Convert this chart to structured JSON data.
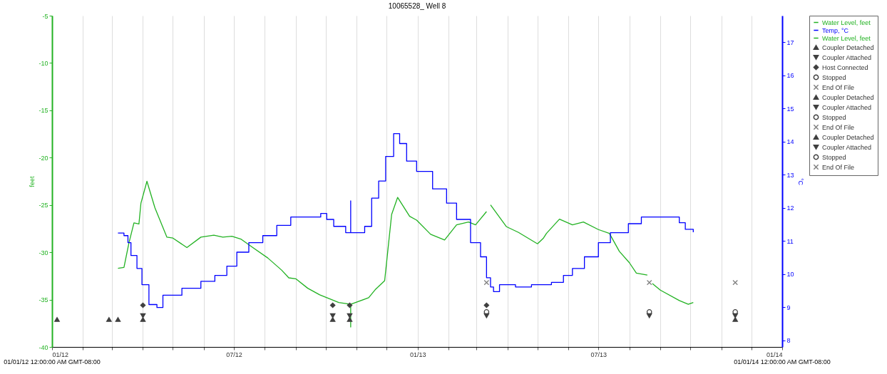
{
  "chart_data": {
    "type": "line",
    "title": "10065528_ Well 8",
    "ylabel": "feet",
    "y2label": "°C",
    "xlim": [
      "2012-01-01",
      "2014-01-01"
    ],
    "xticks": [
      {
        "value": "2012-01-01",
        "label": "01/12"
      },
      {
        "value": "2012-02-01",
        "label": null
      },
      {
        "value": "2012-03-01",
        "label": null
      },
      {
        "value": "2012-04-01",
        "label": null
      },
      {
        "value": "2012-05-01",
        "label": null
      },
      {
        "value": "2012-06-01",
        "label": null
      },
      {
        "value": "2012-07-01",
        "label": "07/12"
      },
      {
        "value": "2012-08-01",
        "label": null
      },
      {
        "value": "2012-09-01",
        "label": null
      },
      {
        "value": "2012-10-01",
        "label": null
      },
      {
        "value": "2012-11-01",
        "label": null
      },
      {
        "value": "2012-12-01",
        "label": null
      },
      {
        "value": "2013-01-01",
        "label": "01/13"
      },
      {
        "value": "2013-02-01",
        "label": null
      },
      {
        "value": "2013-03-01",
        "label": null
      },
      {
        "value": "2013-04-01",
        "label": null
      },
      {
        "value": "2013-05-01",
        "label": null
      },
      {
        "value": "2013-06-01",
        "label": null
      },
      {
        "value": "2013-07-01",
        "label": "07/13"
      },
      {
        "value": "2013-08-01",
        "label": null
      },
      {
        "value": "2013-09-01",
        "label": null
      },
      {
        "value": "2013-10-01",
        "label": null
      },
      {
        "value": "2013-11-01",
        "label": null
      },
      {
        "value": "2013-12-01",
        "label": null
      },
      {
        "value": "2014-01-01",
        "label": "01/14"
      }
    ],
    "ylim": [
      -40,
      -5
    ],
    "yticks": [
      -40,
      -35,
      -30,
      -25,
      -20,
      -15,
      -10,
      -5
    ],
    "y2lim": [
      7.8,
      17.8
    ],
    "y2ticks": [
      8,
      9,
      10,
      11,
      12,
      13,
      14,
      15,
      16,
      17
    ],
    "grid": "x",
    "legend": "top right",
    "annotations": [
      "01/01/12 12:00:00 AM GMT-08:00",
      "01/01/14 12:00:00 AM GMT-08:00"
    ],
    "series": [
      {
        "name": "Water Level, feet",
        "type": "line",
        "color": "#22b222",
        "x": [
          "2012-03-07",
          "2012-03-13",
          "2012-03-18",
          "2012-03-23",
          "2012-03-28",
          "2012-03-30",
          "2012-04-05",
          "2012-04-13",
          "2012-04-25",
          "2012-05-01",
          "2012-05-15",
          "2012-05-29",
          "2012-06-11",
          "2012-06-20",
          "2012-06-29",
          "2012-07-08",
          "2012-07-20",
          "2012-08-04",
          "2012-08-18",
          "2012-08-25",
          "2012-09-01",
          "2012-09-13",
          "2012-09-25",
          "2012-10-07",
          "2012-10-14",
          "2012-10-26",
          "2012-10-26",
          "2012-10-26",
          "2012-11-13",
          "2012-11-20",
          "2012-11-29",
          "2012-12-02",
          "2012-12-06",
          "2012-12-12",
          "2012-12-24",
          "2012-12-31",
          "2013-01-14",
          "2013-01-28",
          "2013-02-09",
          "2013-02-21",
          "2013-02-28",
          "2013-03-11"
        ],
        "values": [
          -31.7,
          -31.6,
          -29.0,
          -26.9,
          -27.0,
          -24.8,
          -22.5,
          -25.3,
          -28.4,
          -28.5,
          -29.5,
          -28.4,
          -28.2,
          -28.4,
          -28.3,
          -28.6,
          -29.5,
          -30.6,
          -31.9,
          -32.7,
          -32.8,
          -33.8,
          -34.5,
          -35.0,
          -35.3,
          -35.5,
          -37.9,
          -35.5,
          -34.8,
          -33.9,
          -33.0,
          -30.0,
          -26.0,
          -24.2,
          -26.2,
          -26.6,
          -28.1,
          -28.7,
          -27.1,
          -26.8,
          -27.1,
          -25.7
        ]
      },
      {
        "name": "Temp, °C",
        "type": "step",
        "axis": "y2",
        "color": "#0000ff",
        "x": [
          "2012-03-07",
          "2012-03-13",
          "2012-03-17",
          "2012-03-20",
          "2012-03-26",
          "2012-03-31",
          "2012-04-07",
          "2012-04-15",
          "2012-04-21",
          "2012-05-10",
          "2012-05-29",
          "2012-06-12",
          "2012-06-24",
          "2012-07-04",
          "2012-07-16",
          "2012-07-30",
          "2012-08-13",
          "2012-08-27",
          "2012-09-17",
          "2012-09-26",
          "2012-10-02",
          "2012-10-09",
          "2012-10-21",
          "2012-10-26",
          "2012-10-26",
          "2012-11-03",
          "2012-11-09",
          "2012-11-16",
          "2012-11-23",
          "2012-11-30",
          "2012-12-08",
          "2012-12-14",
          "2012-12-21",
          "2012-12-31",
          "2013-01-16",
          "2013-01-30",
          "2013-02-09",
          "2013-02-23",
          "2013-03-05",
          "2013-03-11",
          "2013-03-15",
          "2013-03-18",
          "2013-03-24",
          "2013-04-09",
          "2013-04-25",
          "2013-05-15",
          "2013-05-27",
          "2013-06-05",
          "2013-06-17",
          "2013-07-01",
          "2013-07-13",
          "2013-07-31",
          "2013-08-13",
          "2013-09-14",
          "2013-09-20",
          "2013-09-26",
          "2013-10-04"
        ],
        "values": [
          11.24,
          11.16,
          10.95,
          10.56,
          10.17,
          9.68,
          9.08,
          8.99,
          9.36,
          9.57,
          9.78,
          9.96,
          10.24,
          10.66,
          10.95,
          11.16,
          11.47,
          11.72,
          11.72,
          11.83,
          11.65,
          11.44,
          11.25,
          12.21,
          11.25,
          11.25,
          11.44,
          12.29,
          12.81,
          13.55,
          14.24,
          13.94,
          13.41,
          13.1,
          12.57,
          12.14,
          11.65,
          10.95,
          10.52,
          9.89,
          9.61,
          9.47,
          9.68,
          9.61,
          9.68,
          9.75,
          9.96,
          10.17,
          10.52,
          10.95,
          11.25,
          11.52,
          11.72,
          11.72,
          11.55,
          11.35,
          11.26
        ]
      },
      {
        "name": "Water Level, feet",
        "type": "line",
        "color": "#22b222",
        "x": [
          "2013-03-15",
          "2013-03-31",
          "2013-04-12",
          "2013-05-01",
          "2013-05-07",
          "2013-05-10",
          "2013-05-23",
          "2013-06-05",
          "2013-06-16",
          "2013-07-01",
          "2013-07-12",
          "2013-07-22",
          "2013-08-01",
          "2013-08-08",
          "2013-08-19",
          "2013-08-20",
          "2013-08-24",
          "2013-09-01",
          "2013-09-20",
          "2013-09-29",
          "2013-10-04"
        ],
        "values": [
          -25.0,
          -27.3,
          -27.9,
          -29.1,
          -28.5,
          -28.0,
          -26.5,
          -27.1,
          -26.8,
          -27.6,
          -28.0,
          -29.9,
          -31.1,
          -32.2,
          -32.4,
          null,
          -33.3,
          -34.0,
          -35.1,
          -35.5,
          -35.3
        ]
      },
      {
        "name": "Coupler Detached",
        "type": "scatter",
        "marker": "triangle-up",
        "color": "#404040",
        "x": [
          "2012-01-06",
          "2012-02-27",
          "2012-03-07"
        ],
        "values": [
          -37.1,
          -37.1,
          -37.1
        ]
      },
      {
        "name": "Coupler Attached",
        "type": "scatter",
        "marker": "triangle-down",
        "color": "#404040",
        "x": [
          "2012-04-01"
        ],
        "values": [
          -36.7
        ]
      },
      {
        "name": "Host Connected",
        "type": "scatter",
        "marker": "diamond",
        "color": "#404040",
        "x": [
          "2012-04-01",
          "2012-10-08",
          "2012-10-25",
          "2013-03-11"
        ],
        "values": [
          -35.6,
          -35.6,
          -35.6,
          -35.6
        ]
      },
      {
        "name": "Stopped",
        "type": "scatter",
        "marker": "circle",
        "color": "#404040",
        "x": [
          "2013-03-11"
        ],
        "values": [
          -36.3
        ]
      },
      {
        "name": "End Of File",
        "type": "scatter",
        "marker": "cross",
        "color": "#808080",
        "x": [
          "2013-03-11"
        ],
        "values": [
          -33.2
        ]
      },
      {
        "name": "Coupler Detached",
        "type": "scatter",
        "marker": "triangle-up",
        "color": "#404040",
        "x": [
          "2012-04-01",
          "2012-10-08",
          "2012-10-25"
        ],
        "values": [
          -37.1,
          -37.1,
          -37.1
        ]
      },
      {
        "name": "Coupler Attached",
        "type": "scatter",
        "marker": "triangle-down",
        "color": "#404040",
        "x": [
          "2012-10-08",
          "2012-10-25",
          "2013-03-11"
        ],
        "values": [
          -36.7,
          -36.7,
          -36.7
        ]
      },
      {
        "name": "Stopped",
        "type": "scatter",
        "marker": "circle",
        "color": "#404040",
        "x": [
          "2013-08-21"
        ],
        "values": [
          -36.3
        ]
      },
      {
        "name": "End Of File",
        "type": "scatter",
        "marker": "cross",
        "color": "#808080",
        "x": [
          "2013-08-21"
        ],
        "values": [
          -33.2
        ]
      },
      {
        "name": "Coupler Detached",
        "type": "scatter",
        "marker": "triangle-up",
        "color": "#404040",
        "x": [
          "2013-11-15"
        ],
        "values": [
          -37.1
        ]
      },
      {
        "name": "Coupler Attached",
        "type": "scatter",
        "marker": "triangle-down",
        "color": "#404040",
        "x": [
          "2013-08-21",
          "2013-11-15"
        ],
        "values": [
          -36.7,
          -36.7
        ]
      },
      {
        "name": "Stopped",
        "type": "scatter",
        "marker": "circle",
        "color": "#404040",
        "x": [
          "2013-11-15"
        ],
        "values": [
          -36.3
        ]
      },
      {
        "name": "End Of File",
        "type": "scatter",
        "marker": "cross",
        "color": "#808080",
        "x": [
          "2013-11-15"
        ],
        "values": [
          -33.2
        ]
      }
    ]
  }
}
